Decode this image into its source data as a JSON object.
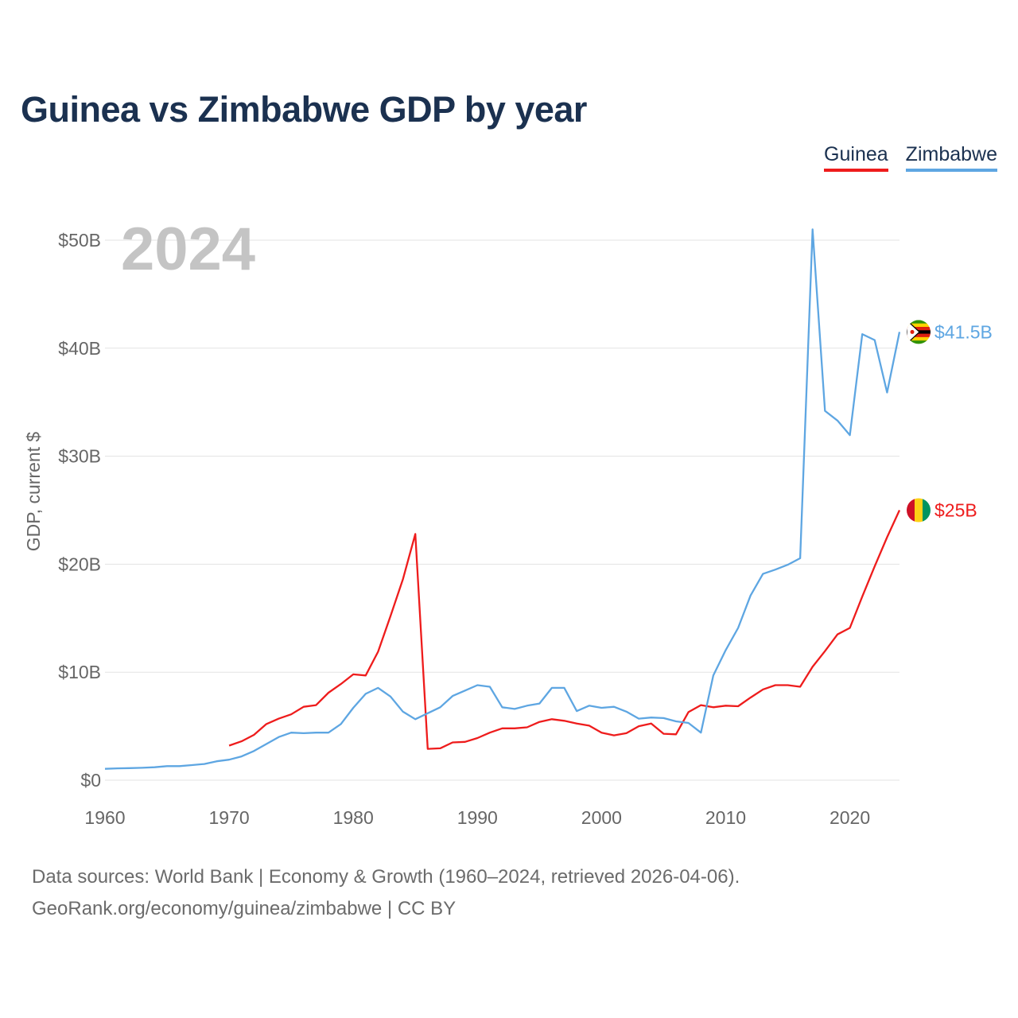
{
  "title": "Guinea vs Zimbabwe GDP by year",
  "legend": {
    "guinea": "Guinea",
    "zimbabwe": "Zimbabwe"
  },
  "colors": {
    "guinea": "#ee1c1c",
    "zimbabwe": "#5ea6e2",
    "title": "#1b3150",
    "year_watermark": "#c4c4c4"
  },
  "source": {
    "line1": "Data sources: World Bank | Economy & Growth (1960–2024, retrieved 2026-04-06).",
    "line2": "GeoRank.org/economy/guinea/zimbabwe | CC BY"
  },
  "chart_data": {
    "type": "line",
    "title": "Guinea vs Zimbabwe GDP by year",
    "xlabel": "",
    "ylabel": "GDP, current $",
    "xlim": [
      1960,
      2024
    ],
    "ylim": [
      0,
      50
    ],
    "y_unit": "billion USD",
    "year_label": "2024",
    "x_ticks": [
      1960,
      1970,
      1980,
      1990,
      2000,
      2010,
      2020
    ],
    "x_tick_labels": [
      "1960",
      "1970",
      "1980",
      "1990",
      "2000",
      "2010",
      "2020"
    ],
    "y_ticks": [
      0,
      10,
      20,
      30,
      40,
      50
    ],
    "y_tick_labels": [
      "$0",
      "$10B",
      "$20B",
      "$30B",
      "$40B",
      "$50B"
    ],
    "grid": true,
    "legend_position": "top-right",
    "series": [
      {
        "name": "Guinea",
        "end_label": "$25B",
        "start_year": 1970,
        "values": [
          3.2,
          3.6,
          4.2,
          5.2,
          5.7,
          6.1,
          6.8,
          6.95,
          8.1,
          8.9,
          9.8,
          9.7,
          11.9,
          15.2,
          18.6,
          22.8,
          2.9,
          2.95,
          3.5,
          3.55,
          3.9,
          4.4,
          4.8,
          4.8,
          4.9,
          5.4,
          5.65,
          5.5,
          5.25,
          5.05,
          4.4,
          4.15,
          4.35,
          5.0,
          5.25,
          4.3,
          4.25,
          6.3,
          6.95,
          6.75,
          6.9,
          6.85,
          7.65,
          8.4,
          8.8,
          8.8,
          8.65,
          10.5,
          11.95,
          13.5,
          14.1,
          17.0,
          19.8,
          22.5,
          25.0
        ]
      },
      {
        "name": "Zimbabwe",
        "end_label": "$41.5B",
        "start_year": 1960,
        "values": [
          1.05,
          1.1,
          1.12,
          1.15,
          1.2,
          1.3,
          1.3,
          1.4,
          1.5,
          1.75,
          1.9,
          2.2,
          2.7,
          3.35,
          4.0,
          4.4,
          4.35,
          4.4,
          4.4,
          5.2,
          6.7,
          8.0,
          8.55,
          7.75,
          6.35,
          5.65,
          6.2,
          6.75,
          7.8,
          8.3,
          8.8,
          8.65,
          6.75,
          6.6,
          6.9,
          7.1,
          8.55,
          8.55,
          6.4,
          6.9,
          6.7,
          6.8,
          6.35,
          5.7,
          5.8,
          5.75,
          5.45,
          5.3,
          4.4,
          9.7,
          12.05,
          14.1,
          17.1,
          19.1,
          19.5,
          19.95,
          20.55,
          51.0,
          34.2,
          33.3,
          31.95,
          41.3,
          40.75,
          35.9,
          41.5
        ]
      }
    ]
  }
}
